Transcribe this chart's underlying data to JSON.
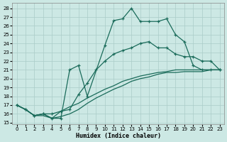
{
  "xlabel": "Humidex (Indice chaleur)",
  "bg_color": "#cce8e4",
  "line_color": "#1a6b5a",
  "grid_color": "#aaccc8",
  "ylim": [
    14.8,
    28.6
  ],
  "xlim": [
    -0.5,
    23.5
  ],
  "curve1_x": [
    0,
    1,
    2,
    3,
    4,
    5,
    6,
    7,
    8,
    10,
    11,
    12,
    13,
    14,
    15,
    16,
    17,
    18,
    19,
    20,
    21,
    22,
    23
  ],
  "curve1_y": [
    17.0,
    16.5,
    15.8,
    16.0,
    15.5,
    15.5,
    21.0,
    21.5,
    18.0,
    23.8,
    26.6,
    26.8,
    28.0,
    26.5,
    26.5,
    26.5,
    26.8,
    25.0,
    24.2,
    21.5,
    21.0,
    21.0,
    21.0
  ],
  "curve2_x": [
    0,
    1,
    2,
    3,
    4,
    5,
    6,
    7,
    8,
    9,
    10,
    11,
    12,
    13,
    14,
    15,
    16,
    17,
    18,
    19,
    20,
    21,
    22,
    23
  ],
  "curve2_y": [
    17.0,
    16.5,
    15.8,
    16.0,
    16.0,
    16.3,
    16.5,
    18.2,
    19.5,
    21.0,
    22.0,
    22.8,
    23.2,
    23.5,
    24.0,
    24.2,
    23.5,
    23.5,
    22.8,
    22.5,
    22.5,
    22.0,
    22.0,
    21.0
  ],
  "curve3_x": [
    0,
    1,
    2,
    3,
    4,
    5,
    6,
    7,
    8,
    9,
    10,
    11,
    12,
    13,
    14,
    15,
    16,
    17,
    18,
    19,
    20,
    21,
    22,
    23
  ],
  "curve3_y": [
    17.0,
    16.5,
    15.8,
    15.8,
    15.5,
    15.7,
    16.0,
    16.5,
    17.2,
    17.8,
    18.3,
    18.8,
    19.2,
    19.7,
    20.0,
    20.2,
    20.5,
    20.7,
    20.7,
    20.8,
    20.8,
    20.8,
    21.0,
    21.0
  ],
  "curve4_x": [
    0,
    1,
    2,
    3,
    4,
    5,
    6,
    7,
    8,
    9,
    10,
    11,
    12,
    13,
    14,
    15,
    16,
    17,
    18,
    19,
    20,
    21,
    22,
    23
  ],
  "curve4_y": [
    17.0,
    16.5,
    15.8,
    16.0,
    15.5,
    16.3,
    16.8,
    17.2,
    17.8,
    18.3,
    18.8,
    19.2,
    19.7,
    20.0,
    20.3,
    20.5,
    20.7,
    20.8,
    21.0,
    21.0,
    21.0,
    21.0,
    21.0,
    21.0
  ]
}
